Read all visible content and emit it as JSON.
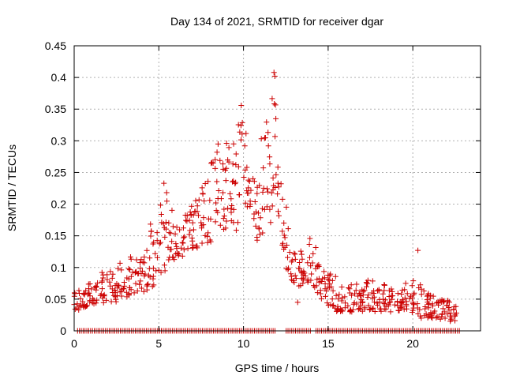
{
  "chart_data": {
    "type": "scatter",
    "title": "Day 134 of 2021, SRMTID for receiver dgar",
    "xlabel": "GPS time / hours",
    "ylabel": "SRMTID / TECUs",
    "xlim": [
      0,
      24
    ],
    "ylim": [
      0,
      0.45
    ],
    "x_ticks": [
      0,
      5,
      10,
      15,
      20
    ],
    "x_tick_labels": [
      "0",
      "5",
      "10",
      "15",
      "20"
    ],
    "y_ticks": [
      0,
      0.05,
      0.1,
      0.15,
      0.2,
      0.25,
      0.3,
      0.35,
      0.4,
      0.45
    ],
    "y_tick_labels": [
      "0",
      "0.05",
      "0.1",
      "0.15",
      "0.2",
      "0.25",
      "0.3",
      "0.35",
      "0.4",
      "0.45"
    ],
    "grid": true,
    "marker": "plus",
    "series": [
      {
        "name": "SRMTID",
        "color": "#cc0000",
        "envelope": [
          [
            0.0,
            0.025,
            0.06
          ],
          [
            0.3,
            0.03,
            0.065
          ],
          [
            0.8,
            0.04,
            0.075
          ],
          [
            1.5,
            0.045,
            0.09
          ],
          [
            2.0,
            0.04,
            0.1
          ],
          [
            2.5,
            0.045,
            0.105
          ],
          [
            3.0,
            0.05,
            0.11
          ],
          [
            3.5,
            0.06,
            0.12
          ],
          [
            4.0,
            0.06,
            0.13
          ],
          [
            4.5,
            0.065,
            0.17
          ],
          [
            5.0,
            0.08,
            0.2
          ],
          [
            5.5,
            0.1,
            0.22
          ],
          [
            6.0,
            0.11,
            0.17
          ],
          [
            6.5,
            0.12,
            0.18
          ],
          [
            7.0,
            0.13,
            0.2
          ],
          [
            7.5,
            0.13,
            0.22
          ],
          [
            8.0,
            0.14,
            0.28
          ],
          [
            8.5,
            0.14,
            0.29
          ],
          [
            9.0,
            0.15,
            0.3
          ],
          [
            9.5,
            0.15,
            0.3
          ],
          [
            10.0,
            0.2,
            0.38
          ],
          [
            10.5,
            0.18,
            0.25
          ],
          [
            11.0,
            0.12,
            0.3
          ],
          [
            11.5,
            0.15,
            0.35
          ],
          [
            11.8,
            0.2,
            0.41
          ],
          [
            12.0,
            0.18,
            0.3
          ],
          [
            12.5,
            0.1,
            0.2
          ],
          [
            13.0,
            0.07,
            0.15
          ],
          [
            13.5,
            0.07,
            0.12
          ],
          [
            14.0,
            0.08,
            0.17
          ],
          [
            14.5,
            0.05,
            0.1
          ],
          [
            15.0,
            0.04,
            0.09
          ],
          [
            15.5,
            0.03,
            0.09
          ],
          [
            16.0,
            0.03,
            0.07
          ],
          [
            17.0,
            0.03,
            0.08
          ],
          [
            18.0,
            0.03,
            0.08
          ],
          [
            19.0,
            0.03,
            0.07
          ],
          [
            19.8,
            0.035,
            0.08
          ],
          [
            20.2,
            0.02,
            0.09
          ],
          [
            21.0,
            0.02,
            0.06
          ],
          [
            22.0,
            0.015,
            0.05
          ],
          [
            22.7,
            0.015,
            0.04
          ]
        ],
        "outliers": [
          [
            5.3,
            0.233
          ],
          [
            8.5,
            0.295
          ],
          [
            9.0,
            0.296
          ],
          [
            10.4,
            0.2
          ],
          [
            11.8,
            0.408
          ],
          [
            11.85,
            0.402
          ],
          [
            20.3,
            0.127
          ],
          [
            13.2,
            0.045
          ]
        ],
        "zero_points": {
          "value": 0,
          "x_start": 0.2,
          "x_end": 22.8,
          "spacing": 0.11,
          "gaps": [
            [
              11.9,
              12.5
            ],
            [
              14.0,
              14.25
            ]
          ]
        }
      }
    ]
  }
}
